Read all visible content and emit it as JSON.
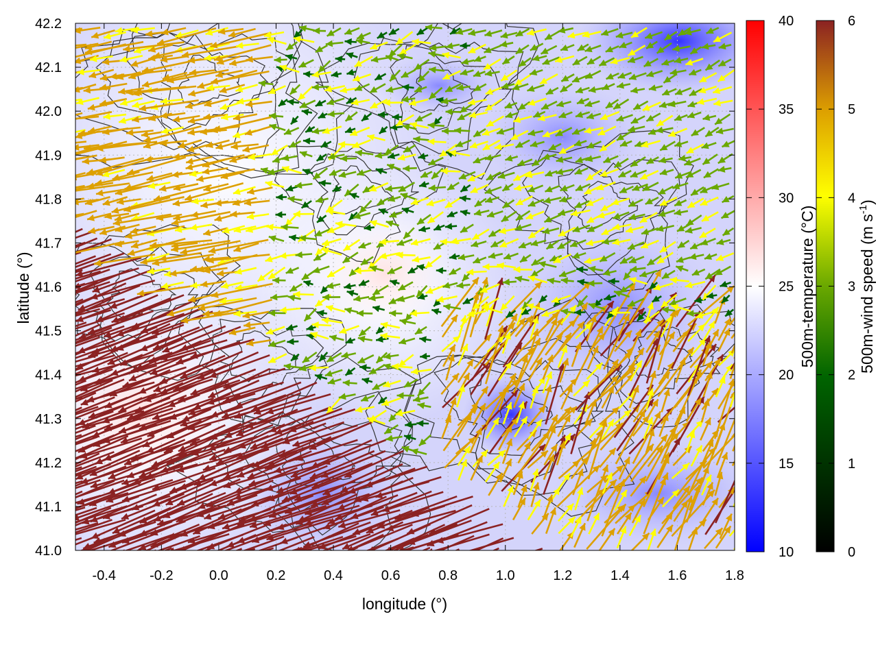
{
  "chart_data": {
    "type": "vector-field",
    "title": "",
    "xlabel": "longitude (°)",
    "ylabel": "latitude (°)",
    "xlim": [
      -0.5,
      1.8
    ],
    "ylim": [
      41.0,
      42.2
    ],
    "x_ticks": [
      "-0.4",
      "-0.2",
      "0.0",
      "0.2",
      "0.4",
      "0.6",
      "0.8",
      "1.0",
      "1.2",
      "1.4",
      "1.6",
      "1.8"
    ],
    "y_ticks": [
      "41.0",
      "41.1",
      "41.2",
      "41.3",
      "41.4",
      "41.5",
      "41.6",
      "41.7",
      "41.8",
      "41.9",
      "42.0",
      "42.1",
      "42.2"
    ],
    "grid": "dotted",
    "layers": [
      "temperature field (background)",
      "topography contours",
      "wind vectors"
    ],
    "temperature_colorbar": {
      "label": "500m-temperature (°C)",
      "range": [
        10,
        40
      ],
      "ticks": [
        "10",
        "15",
        "20",
        "25",
        "30",
        "35",
        "40"
      ],
      "colors": {
        "low": "#0000ff",
        "mid": "#ffffff",
        "high": "#ff0000"
      }
    },
    "wind_colorbar": {
      "label_main": "500m-wind speed (m s",
      "label_sup": "-1",
      "label_end": ")",
      "range": [
        0,
        6
      ],
      "ticks": [
        "0",
        "1",
        "2",
        "3",
        "4",
        "5",
        "6"
      ],
      "colors": [
        "#000000",
        "#006400",
        "#6aa800",
        "#ffff00",
        "#dda000",
        "#8b2222"
      ]
    },
    "wind_regions": [
      {
        "region": "southwest lowlands",
        "speed_ms": 6.0,
        "direction": "towards west-northwest"
      },
      {
        "region": "west",
        "speed_ms": 4.5,
        "direction": "towards west"
      },
      {
        "region": "central north",
        "speed_ms": 2.0,
        "direction": "variable / towards west"
      },
      {
        "region": "northeast",
        "speed_ms": 2.5,
        "direction": "towards west-southwest"
      },
      {
        "region": "southeast coast",
        "speed_ms": 4.5,
        "direction": "towards northeast"
      }
    ],
    "temperature_regions": [
      {
        "region": "southwest",
        "temperature_c": 26.5
      },
      {
        "region": "centre",
        "temperature_c": 25.5
      },
      {
        "region": "northeast",
        "temperature_c": 14.0
      },
      {
        "region": "southeast",
        "temperature_c": 18.5
      },
      {
        "region": "east-centre",
        "temperature_c": 16.0
      }
    ]
  }
}
